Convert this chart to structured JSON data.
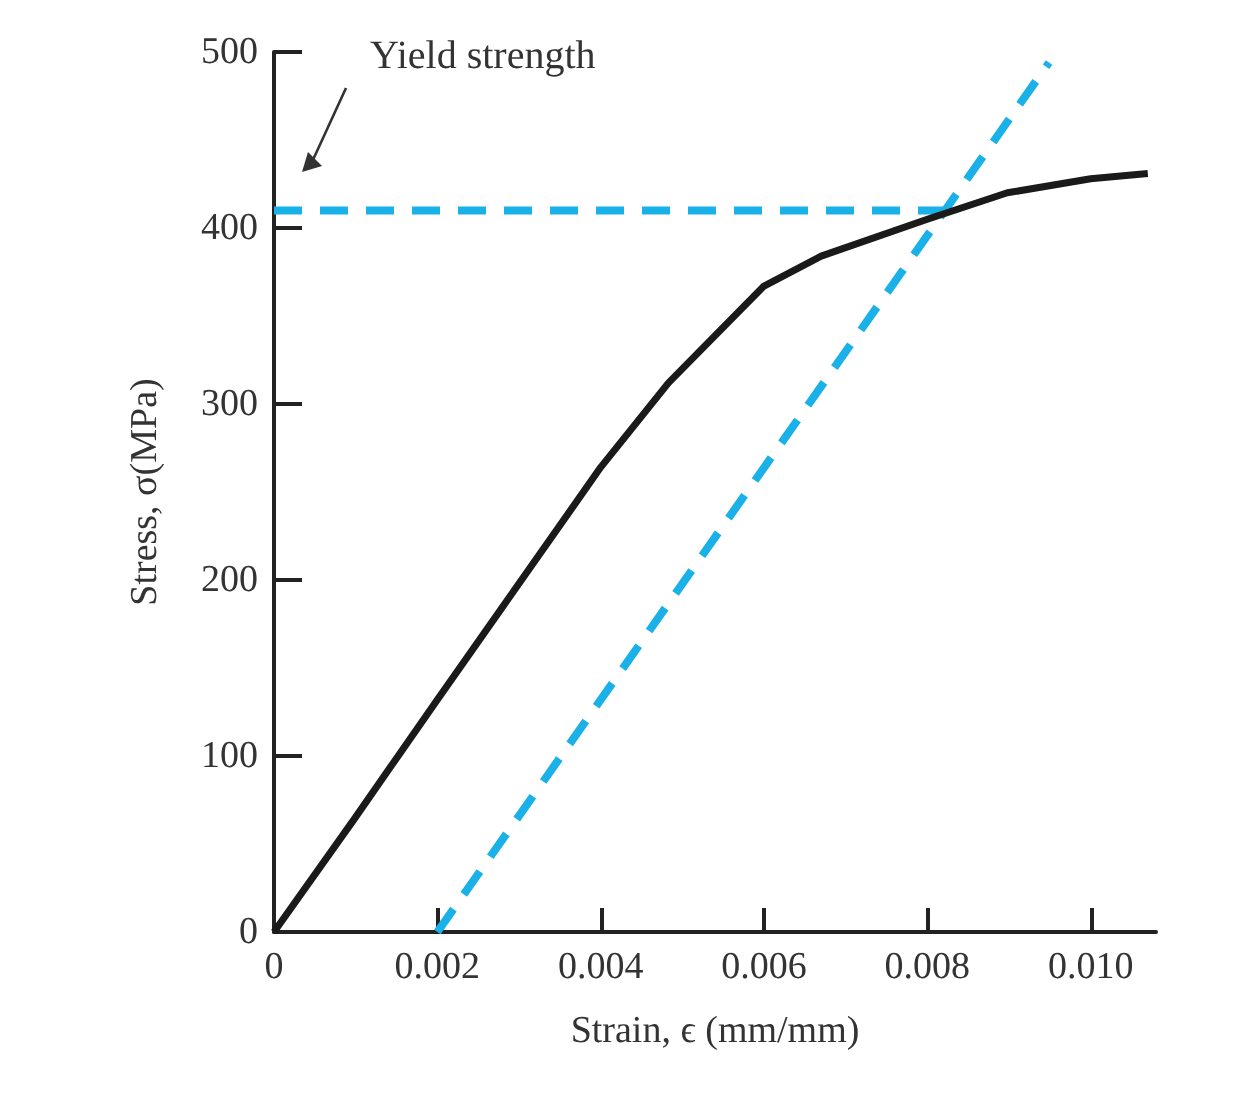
{
  "chart_data": {
    "type": "line",
    "xlabel": "Strain, ϵ (mm/mm)",
    "ylabel": "Stress, σ(MPa)",
    "xlim": [
      0,
      0.0108
    ],
    "xticks": [
      0,
      0.002,
      0.004,
      0.006,
      0.008,
      {
        "value": 0.01,
        "label": "0.010"
      }
    ],
    "ylim": [
      0,
      500
    ],
    "yticks": [
      0,
      100,
      200,
      300,
      400,
      500
    ],
    "grid": false,
    "marker": "none",
    "annotations": [
      "Yield strength"
    ],
    "series": [
      {
        "color": "#1a1a1a",
        "line_style": "solid",
        "x": [
          0,
          0.00098,
          0.00143,
          0.002,
          0.00294,
          0.004,
          0.00483,
          0.006,
          0.0067,
          0.008,
          0.00898,
          0.01,
          0.0107
        ],
        "values": [
          0,
          64,
          94,
          132,
          194,
          264,
          312,
          367,
          384,
          405,
          420,
          428,
          431
        ]
      },
      {
        "color": "#1ab0e8",
        "line_style": "dashed",
        "x": [
          0,
          0.0082
        ],
        "values": [
          410,
          410
        ]
      },
      {
        "color": "#1ab0e8",
        "line_style": "dashed",
        "x": [
          0.002,
          0.00949
        ],
        "values": [
          0,
          494
        ]
      }
    ]
  }
}
